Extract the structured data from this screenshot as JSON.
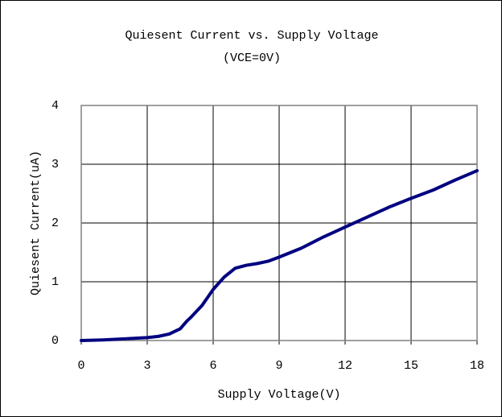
{
  "chart_data": {
    "type": "line",
    "title": "Quiesent Current vs. Supply Voltage",
    "subtitle": "(VCE=0V)",
    "x_label": "Supply Voltage(V)",
    "y_label": "Quiesent Current(uA)",
    "x": [
      0,
      1,
      2,
      3,
      3.5,
      4,
      4.5,
      4.8,
      5,
      5.5,
      6,
      6.5,
      7,
      7.5,
      8,
      8.5,
      9,
      10,
      11,
      12,
      13,
      14,
      15,
      16,
      17,
      18
    ],
    "series": [
      {
        "name": "Quiesent Current",
        "color": "#000080",
        "values": [
          0,
          0.01,
          0.03,
          0.05,
          0.07,
          0.11,
          0.2,
          0.33,
          0.4,
          0.6,
          0.87,
          1.08,
          1.23,
          1.28,
          1.31,
          1.35,
          1.42,
          1.57,
          1.76,
          1.93,
          2.1,
          2.27,
          2.42,
          2.56,
          2.73,
          2.89
        ]
      }
    ],
    "xlim": [
      0,
      18
    ],
    "xticks": [
      0,
      3,
      6,
      9,
      12,
      15,
      18
    ],
    "ylim": [
      0,
      4
    ],
    "yticks": [
      0,
      1,
      2,
      3,
      4
    ],
    "grid": true
  }
}
